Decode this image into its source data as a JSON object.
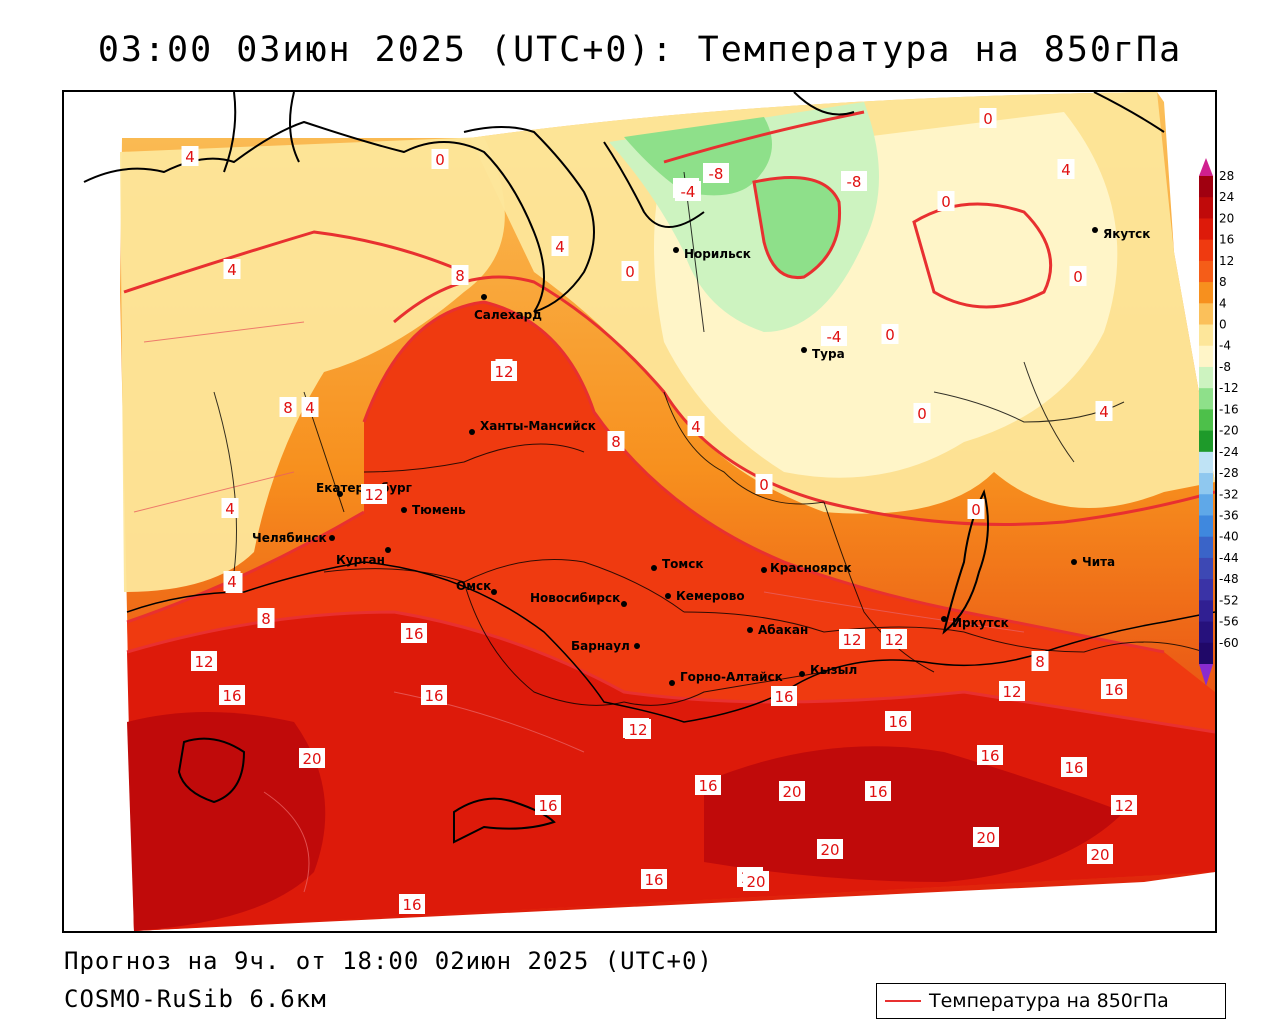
{
  "header": {
    "title": "03:00 03июн 2025 (UTC+0): Температура на 850гПа"
  },
  "footer": {
    "forecast": "Прогноз на 9ч. от 18:00 02июн 2025 (UTC+0)",
    "model": "COSMO-RuSib 6.6км"
  },
  "legend": {
    "label": "Температура на 850гПа",
    "line_color": "#e83030"
  },
  "colorbar": {
    "ticks": [
      "28",
      "24",
      "20",
      "16",
      "12",
      "8",
      "4",
      "0",
      "-4",
      "-8",
      "-12",
      "-16",
      "-20",
      "-24",
      "-28",
      "-32",
      "-36",
      "-40",
      "-44",
      "-48",
      "-52",
      "-56",
      "-60"
    ],
    "colors": [
      "#a00010",
      "#c00a0a",
      "#dd1a0a",
      "#ef3a10",
      "#f55d18",
      "#f7901e",
      "#fbc05a",
      "#fde69a",
      "#fff5c8",
      "#cdf3c0",
      "#8ee08a",
      "#4dc04a",
      "#1e9a2a",
      "#bfe3f5",
      "#8fc8ef",
      "#5fa8e8",
      "#3f88de",
      "#3a64c8",
      "#3d48b4",
      "#3a33a6",
      "#301f92",
      "#26117c",
      "#200868"
    ]
  },
  "cities": [
    {
      "name": "Норильск"
    },
    {
      "name": "Якутск"
    },
    {
      "name": "Салехард"
    },
    {
      "name": "Тура"
    },
    {
      "name": "Ханты-Мансийск"
    },
    {
      "name": "Екатеринбург"
    },
    {
      "name": "Тюмень"
    },
    {
      "name": "Челябинск"
    },
    {
      "name": "Курган"
    },
    {
      "name": "Омск"
    },
    {
      "name": "Новосибирск"
    },
    {
      "name": "Томск"
    },
    {
      "name": "Кемерово"
    },
    {
      "name": "Красноярск"
    },
    {
      "name": "Абакан"
    },
    {
      "name": "Барнаул"
    },
    {
      "name": "Горно-Алтайск"
    },
    {
      "name": "Кызыл"
    },
    {
      "name": "Иркутск"
    },
    {
      "name": "Чита"
    }
  ],
  "contour_labels": [
    "4",
    "0",
    "-4",
    "0",
    "4",
    "-4",
    "-8",
    "-8",
    "0",
    "4",
    "0",
    "4",
    "8",
    "0",
    "8",
    "4",
    "8",
    "4",
    "0",
    "12",
    "8",
    "12",
    "4",
    "-4",
    "0",
    "4",
    "4",
    "0",
    "4",
    "0",
    "8",
    "12",
    "12",
    "16",
    "12",
    "16",
    "20",
    "16",
    "16",
    "12",
    "16",
    "12",
    "16",
    "8",
    "20",
    "16",
    "16",
    "12",
    "20",
    "20",
    "16",
    "16",
    "16",
    "20",
    "12",
    "16",
    "16",
    "20",
    "16"
  ]
}
